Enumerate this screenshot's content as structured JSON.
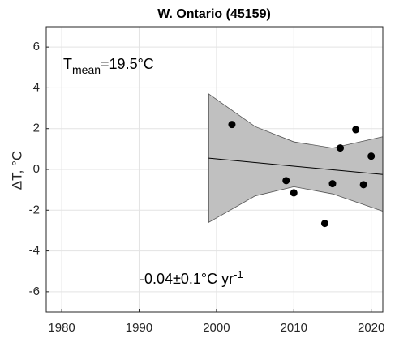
{
  "chart_data": {
    "type": "scatter",
    "title": "W. Ontario (45159)",
    "y_label": "ΔT, °C",
    "annotation_mean": [
      "T",
      "mean",
      "=19.5°C"
    ],
    "annotation_trend": [
      "-0.04±0.1°C yr",
      "-1"
    ],
    "x": [
      2002,
      2009,
      2010,
      2014,
      2015,
      2016,
      2018,
      2019,
      2020
    ],
    "values": [
      2.2,
      -0.55,
      -1.15,
      -2.65,
      -0.7,
      1.05,
      1.95,
      -0.75,
      0.65
    ],
    "color": "#000000",
    "trend": {
      "x": [
        1999,
        2021.5
      ],
      "values": [
        0.55,
        -0.25
      ],
      "color": "#000000"
    },
    "band": {
      "x": [
        1999,
        2005,
        2010,
        2015,
        2021.5
      ],
      "upper": [
        3.7,
        2.1,
        1.35,
        1.05,
        1.6
      ],
      "lower": [
        -2.6,
        -1.3,
        -0.85,
        -1.2,
        -2.05
      ],
      "color": "#c0c0c0"
    },
    "xlim": [
      1978,
      2021.5
    ],
    "ylim": [
      -7,
      7
    ],
    "xticks": [
      1980,
      1990,
      2000,
      2010,
      2020
    ],
    "yticks": [
      -6,
      -4,
      -2,
      0,
      2,
      4,
      6
    ],
    "grid": true
  }
}
